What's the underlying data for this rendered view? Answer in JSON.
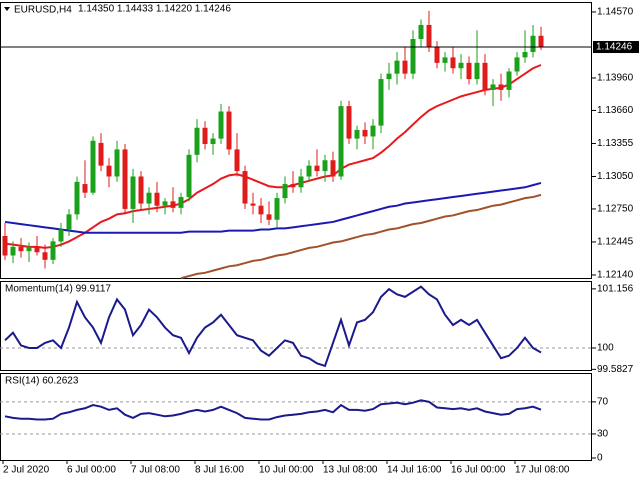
{
  "chart_data": [
    {
      "type": "candlestick",
      "title": "EURUSD,H4",
      "info": "1.14350 1.14433 1.14220 1.14246",
      "categories": [
        "2 Jul 2020",
        null,
        null,
        null,
        null,
        null,
        null,
        null,
        "6 Jul 00:00",
        null,
        null,
        null,
        null,
        null,
        null,
        null,
        "7 Jul 08:00",
        null,
        null,
        null,
        null,
        null,
        null,
        null,
        "8 Jul 16:00",
        null,
        null,
        null,
        null,
        null,
        null,
        null,
        "10 Jul 00:00",
        null,
        null,
        null,
        null,
        null,
        null,
        null,
        "13 Jul 08:00",
        null,
        null,
        null,
        null,
        null,
        null,
        null,
        "14 Jul 16:00",
        null,
        null,
        null,
        null,
        null,
        null,
        null,
        "16 Jul 00:00",
        null,
        null,
        null,
        null,
        null,
        null,
        null,
        "17 Jul 08:00",
        null,
        null,
        null
      ],
      "open": [
        1.125,
        1.1232,
        1.124,
        1.1236,
        1.124,
        1.1235,
        1.1228,
        1.1245,
        1.1256,
        1.127,
        1.1298,
        1.129,
        1.1336,
        1.1315,
        1.1305,
        1.133,
        1.1275,
        1.1305,
        1.128,
        1.129,
        1.1278,
        1.1282,
        1.1276,
        1.1286,
        1.1325,
        1.135,
        1.1335,
        1.134,
        1.1365,
        1.133,
        1.131,
        1.128,
        1.1278,
        1.127,
        1.1265,
        1.1285,
        1.1298,
        1.1295,
        1.1305,
        1.1315,
        1.131,
        1.132,
        1.1305,
        1.137,
        1.134,
        1.1348,
        1.1342,
        1.1352,
        1.1395,
        1.14,
        1.1412,
        1.14,
        1.1432,
        1.1445,
        1.1425,
        1.141,
        1.1415,
        1.1405,
        1.141,
        1.1395,
        1.141,
        1.1385,
        1.139,
        1.1385,
        1.1402,
        1.1415,
        1.142,
        1.1435
      ],
      "high": [
        1.1262,
        1.1245,
        1.1248,
        1.1244,
        1.125,
        1.1242,
        1.1248,
        1.1262,
        1.1275,
        1.1305,
        1.132,
        1.1342,
        1.1345,
        1.1322,
        1.1338,
        1.1335,
        1.1312,
        1.131,
        1.1295,
        1.13,
        1.1285,
        1.1295,
        1.129,
        1.133,
        1.1358,
        1.1356,
        1.1345,
        1.1372,
        1.137,
        1.1345,
        1.1315,
        1.129,
        1.1285,
        1.1282,
        1.129,
        1.1305,
        1.131,
        1.1312,
        1.132,
        1.133,
        1.1325,
        1.1328,
        1.1375,
        1.1375,
        1.1352,
        1.1355,
        1.1358,
        1.14,
        1.141,
        1.142,
        1.1425,
        1.144,
        1.145,
        1.1458,
        1.143,
        1.142,
        1.1425,
        1.1418,
        1.1416,
        1.144,
        1.1418,
        1.1395,
        1.14,
        1.1405,
        1.142,
        1.144,
        1.1445,
        1.14433
      ],
      "low": [
        1.1228,
        1.1225,
        1.123,
        1.1226,
        1.1232,
        1.122,
        1.1224,
        1.124,
        1.125,
        1.1265,
        1.1285,
        1.1288,
        1.131,
        1.1295,
        1.13,
        1.127,
        1.1262,
        1.1275,
        1.127,
        1.1272,
        1.127,
        1.1272,
        1.127,
        1.1282,
        1.1318,
        1.133,
        1.1325,
        1.1335,
        1.1325,
        1.1305,
        1.1275,
        1.127,
        1.1262,
        1.126,
        1.1258,
        1.128,
        1.129,
        1.129,
        1.13,
        1.1305,
        1.13,
        1.13,
        1.1302,
        1.1335,
        1.133,
        1.1335,
        1.133,
        1.1345,
        1.1385,
        1.139,
        1.1395,
        1.1395,
        1.1425,
        1.142,
        1.1405,
        1.1402,
        1.14,
        1.1395,
        1.139,
        1.139,
        1.138,
        1.137,
        1.1375,
        1.1378,
        1.1398,
        1.141,
        1.1415,
        1.1422
      ],
      "close": [
        1.1232,
        1.124,
        1.1236,
        1.124,
        1.1235,
        1.1228,
        1.1245,
        1.1256,
        1.127,
        1.13,
        1.129,
        1.1338,
        1.1315,
        1.1305,
        1.133,
        1.1275,
        1.1305,
        1.128,
        1.129,
        1.1278,
        1.1282,
        1.1276,
        1.1286,
        1.1325,
        1.135,
        1.1335,
        1.134,
        1.1365,
        1.133,
        1.131,
        1.128,
        1.1278,
        1.127,
        1.1265,
        1.1285,
        1.1298,
        1.1295,
        1.1305,
        1.1315,
        1.131,
        1.132,
        1.1305,
        1.137,
        1.134,
        1.1348,
        1.1342,
        1.1352,
        1.1395,
        1.14,
        1.1412,
        1.14,
        1.1432,
        1.1445,
        1.1425,
        1.141,
        1.1415,
        1.1405,
        1.141,
        1.1395,
        1.141,
        1.1385,
        1.139,
        1.1385,
        1.1402,
        1.1415,
        1.142,
        1.1435,
        1.14246
      ],
      "up_color": "#1aa01a",
      "down_color": "#e01b1b",
      "lines": [
        {
          "color": "#e8191c",
          "values": [
            1.1243,
            1.1242,
            1.1241,
            1.124,
            1.124,
            1.1239,
            1.124,
            1.1242,
            1.1245,
            1.1249,
            1.1253,
            1.1258,
            1.1263,
            1.1266,
            1.127,
            1.1271,
            1.1273,
            1.1274,
            1.1275,
            1.1276,
            1.1277,
            1.1278,
            1.128,
            1.1284,
            1.129,
            1.1294,
            1.1298,
            1.1303,
            1.1306,
            1.1307,
            1.1305,
            1.1302,
            1.1299,
            1.1296,
            1.1295,
            1.1295,
            1.1297,
            1.1299,
            1.1301,
            1.1303,
            1.1305,
            1.1306,
            1.1312,
            1.1316,
            1.1318,
            1.132,
            1.1322,
            1.1327,
            1.1333,
            1.134,
            1.1346,
            1.1353,
            1.136,
            1.1366,
            1.137,
            1.1373,
            1.1376,
            1.1379,
            1.1381,
            1.1383,
            1.1385,
            1.1386,
            1.1387,
            1.139,
            1.1395,
            1.14,
            1.1405,
            1.1408
          ]
        },
        {
          "color": "#1a1ab3",
          "values": [
            1.1263,
            1.1262,
            1.1261,
            1.126,
            1.1259,
            1.1258,
            1.1257,
            1.1256,
            1.1255,
            1.1254,
            1.1253,
            1.1253,
            1.1253,
            1.1253,
            1.1253,
            1.1253,
            1.1253,
            1.1253,
            1.1253,
            1.1253,
            1.1253,
            1.1253,
            1.1253,
            1.1254,
            1.1254,
            1.1254,
            1.1254,
            1.1254,
            1.1255,
            1.1255,
            1.1255,
            1.1255,
            1.1256,
            1.1256,
            1.1257,
            1.1257,
            1.1258,
            1.1259,
            1.126,
            1.1261,
            1.1262,
            1.1263,
            1.1265,
            1.1267,
            1.1269,
            1.1271,
            1.1273,
            1.1275,
            1.1277,
            1.1278,
            1.128,
            1.1281,
            1.1282,
            1.1283,
            1.1284,
            1.1285,
            1.1286,
            1.1287,
            1.1288,
            1.1289,
            1.129,
            1.1291,
            1.1292,
            1.1293,
            1.1294,
            1.1295,
            1.1297,
            1.1299
          ]
        },
        {
          "color": "#a0522d",
          "values": [
            null,
            null,
            null,
            null,
            null,
            null,
            null,
            null,
            null,
            null,
            null,
            null,
            null,
            null,
            null,
            null,
            null,
            null,
            null,
            null,
            null,
            null,
            1.1211,
            1.1213,
            1.1215,
            1.1216,
            1.1218,
            1.122,
            1.1222,
            1.1223,
            1.1225,
            1.1227,
            1.1228,
            1.123,
            1.1232,
            1.1233,
            1.1235,
            1.1237,
            1.1239,
            1.124,
            1.1242,
            1.1244,
            1.1245,
            1.1247,
            1.1249,
            1.1251,
            1.1252,
            1.1254,
            1.1256,
            1.1257,
            1.1259,
            1.1261,
            1.1262,
            1.1264,
            1.1266,
            1.1268,
            1.1269,
            1.1271,
            1.1273,
            1.1274,
            1.1276,
            1.1278,
            1.1279,
            1.1281,
            1.1283,
            1.1285,
            1.1286,
            1.1288
          ]
        }
      ],
      "price_line": {
        "value": 1.14246,
        "label": "1.14246"
      },
      "ylim": [
        1.12112,
        1.14662
      ],
      "yticks": [
        {
          "value": 1.1457,
          "label": "1.14570"
        },
        {
          "value": 1.1396,
          "label": "1.13960"
        },
        {
          "value": 1.1366,
          "label": "1.13660"
        },
        {
          "value": 1.13355,
          "label": "1.13355"
        },
        {
          "value": 1.1305,
          "label": "1.13050"
        },
        {
          "value": 1.1275,
          "label": "1.12750"
        },
        {
          "value": 1.12445,
          "label": "1.12445"
        },
        {
          "value": 1.1214,
          "label": "1.12140"
        }
      ]
    },
    {
      "type": "line",
      "title": "Momentum(14) 99.9117",
      "color": "#1a1a8c",
      "values": [
        100.15,
        100.3,
        100.05,
        100.0,
        100.0,
        100.1,
        100.15,
        100.0,
        100.4,
        100.9,
        100.6,
        100.4,
        100.1,
        100.6,
        100.95,
        100.75,
        100.25,
        100.45,
        100.75,
        100.6,
        100.4,
        100.25,
        100.2,
        99.9,
        100.2,
        100.4,
        100.5,
        100.65,
        100.45,
        100.25,
        100.2,
        100.15,
        99.95,
        99.85,
        100.0,
        100.15,
        100.1,
        99.85,
        99.8,
        99.7,
        99.65,
        100.1,
        100.55,
        100.05,
        100.5,
        100.55,
        100.7,
        101.0,
        101.15,
        101.05,
        101.0,
        101.1,
        101.2,
        101.05,
        100.95,
        100.65,
        100.45,
        100.55,
        100.45,
        100.55,
        100.3,
        100.05,
        99.8,
        99.85,
        100.0,
        100.2,
        100.0,
        99.9117
      ],
      "ylim": [
        99.57,
        101.31
      ],
      "yticks": [
        101.156,
        100,
        99.5827
      ],
      "levels": [
        100
      ]
    },
    {
      "type": "line",
      "title": "RSI(14) 60.2623",
      "color": "#1a1a8c",
      "values": [
        52,
        50,
        49,
        49,
        48,
        48,
        49,
        55,
        57,
        60,
        62,
        66,
        64,
        60,
        62,
        54,
        50,
        55,
        56,
        54,
        52,
        53,
        55,
        58,
        60,
        58,
        60,
        64,
        60,
        56,
        50,
        49,
        48,
        48,
        51,
        53,
        54,
        55,
        57,
        58,
        60,
        57,
        66,
        60,
        60,
        59,
        61,
        67,
        68,
        69,
        67,
        69,
        72,
        70,
        63,
        62,
        61,
        62,
        60,
        62,
        58,
        56,
        54,
        55,
        61,
        62,
        64,
        60.2623
      ],
      "ylim": [
        -2.5,
        106
      ],
      "yticks": [
        70,
        30,
        0
      ],
      "levels": [
        70,
        30
      ]
    }
  ]
}
